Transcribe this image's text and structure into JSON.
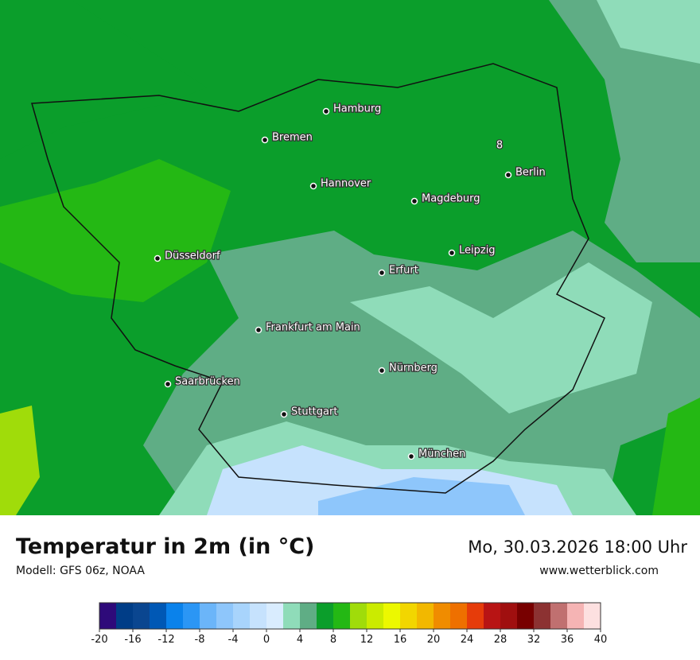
{
  "title": "Temperatur in 2m (in °C)",
  "model": "Modell: GFS 06z, NOAA",
  "datetime": "Mo, 30.03.2026 18:00 Uhr",
  "website": "www.wetterblick.com",
  "map_label": "8",
  "cities": [
    "Hamburg",
    "Bremen",
    "Berlin",
    "Hannover",
    "Magdeburg",
    "Düsseldorf",
    "Leipzig",
    "Erfurt",
    "Frankfurt am Main",
    "Nürnberg",
    "Saarbrücken",
    "Stuttgart",
    "München"
  ],
  "colorbar": {
    "ticks": [
      -20,
      -16,
      -12,
      -8,
      -4,
      0,
      4,
      8,
      12,
      16,
      20,
      24,
      28,
      32,
      36,
      40
    ],
    "colors": [
      "#2e0a7a",
      "#003d87",
      "#0a4690",
      "#0058b5",
      "#0a82eb",
      "#2b96f5",
      "#6bb5f9",
      "#8ec6fb",
      "#a8d4fc",
      "#c6e2fd",
      "#d9ecfe",
      "#8fdcb9",
      "#5fad85",
      "#0b9e2b",
      "#24b814",
      "#a0dc0a",
      "#cbeb00",
      "#ecf800",
      "#f2d600",
      "#f2b800",
      "#f08c00",
      "#ee7000",
      "#e63c0a",
      "#b81414",
      "#a00f0f",
      "#780000",
      "#8c3232",
      "#c07070",
      "#f5b4b4",
      "#fde0e0"
    ]
  }
}
